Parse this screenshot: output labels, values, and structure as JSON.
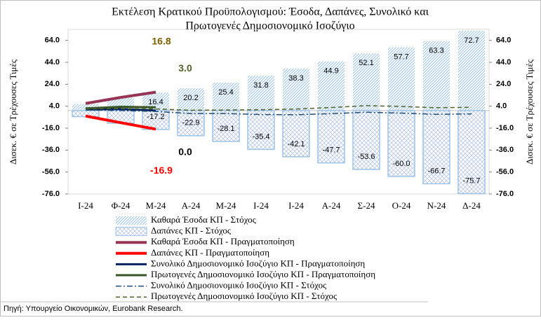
{
  "chart_data": {
    "type": "combo",
    "title": [
      "Εκτέλεση Κρατικού Προϋπολογισμού: Έσοδα, Δαπάνες, Συνολικό και",
      "Πρωτογενές Δημοσιονομικό Ισοζύγιο"
    ],
    "y_label": "Δισεκ. € σε Τρέχουσες Τιμές",
    "y2_label": "Δισεκ. € σε Τρέχουσες Τιμές",
    "source": "Πηγή: Υπουργείο Οικονομικών, Eurobank Research.",
    "categories": [
      "Ι-24",
      "Φ-24",
      "Μ-24",
      "Α-24",
      "Μ-24",
      "Ι-24",
      "Ι-24",
      "Α-24",
      "Σ-24",
      "Ο-24",
      "Ν-24",
      "Δ-24"
    ],
    "ylim": [
      -76,
      74
    ],
    "yticks": [
      {
        "value": 64,
        "label": "64.0"
      },
      {
        "value": 44,
        "label": "44.0"
      },
      {
        "value": 24,
        "label": "24.0"
      },
      {
        "value": 4,
        "label": "4.0"
      },
      {
        "value": -16,
        "label": "-16.0"
      },
      {
        "value": -36,
        "label": "-36.0"
      },
      {
        "value": -56,
        "label": "-56.0"
      },
      {
        "value": -76,
        "label": "-76.0"
      }
    ],
    "y2lim": [
      -76,
      74
    ],
    "y2ticks": [
      {
        "value": 64,
        "label": "64.0"
      },
      {
        "value": 44,
        "label": "44.0"
      },
      {
        "value": 24,
        "label": "24.0"
      },
      {
        "value": 4,
        "label": "4.0"
      },
      {
        "value": -16,
        "label": "-16.0"
      },
      {
        "value": -36,
        "label": "-36.0"
      },
      {
        "value": -56,
        "label": "-56.0"
      },
      {
        "value": -76,
        "label": "-76.0"
      }
    ],
    "legend": "bottom",
    "series": [
      {
        "name": "Καθαρά Έσοδα ΚΠ - Στόχος",
        "type": "bar",
        "pattern": "diagonal",
        "color": "#9dc3e6",
        "values": [
          6.0,
          11.5,
          16.4,
          20.2,
          25.4,
          31.8,
          38.3,
          44.9,
          52.1,
          57.7,
          63.3,
          72.7
        ],
        "value_labels": [
          null,
          null,
          "16.4",
          "20.2",
          "25.4",
          "31.8",
          "38.3",
          "44.9",
          "52.1",
          "57.7",
          "63.3",
          "72.7"
        ]
      },
      {
        "name": "Δαπάνες ΚΠ - Στόχος",
        "type": "bar",
        "pattern": "cross",
        "color": "#9dc3e6",
        "values": [
          -5.5,
          -11.5,
          -17.2,
          -22.9,
          -28.1,
          -35.4,
          -42.1,
          -47.7,
          -53.6,
          -60.0,
          -66.7,
          -75.7
        ],
        "value_labels": [
          null,
          null,
          "-17.2",
          "-22.9",
          "-28.1",
          "-35.4",
          "-42.1",
          "-47.7",
          "-53.6",
          "-60.0",
          "-66.7",
          "-75.7"
        ]
      },
      {
        "name": "Καθαρά Έσοδα ΚΠ - Πραγματοποίηση",
        "type": "line",
        "color": "#953553",
        "width": 4,
        "values": [
          6.5,
          12.0,
          16.8,
          null,
          null,
          null,
          null,
          null,
          null,
          null,
          null,
          null
        ],
        "value_labels": [
          null,
          null,
          "16.8",
          null,
          null,
          null,
          null,
          null,
          null,
          null,
          null,
          null
        ],
        "label_color": "#7f6000"
      },
      {
        "name": "Δαπάνες ΚΠ - Πραγματοποίηση",
        "type": "line",
        "color": "#ff0000",
        "width": 4,
        "values": [
          -5.0,
          -11.0,
          -16.9,
          null,
          null,
          null,
          null,
          null,
          null,
          null,
          null,
          null
        ],
        "value_labels": [
          null,
          null,
          "-16.9",
          null,
          null,
          null,
          null,
          null,
          null,
          null,
          null,
          null
        ],
        "label_color": "#ff0000"
      },
      {
        "name": "Συνολικό Δημοσιονομικό Ισοζύγιο ΚΠ - Πραγματοποίηση",
        "type": "line",
        "color": "#002060",
        "width": 3,
        "values": [
          1.0,
          1.5,
          0.0,
          null,
          null,
          null,
          null,
          null,
          null,
          null,
          null,
          null
        ],
        "value_labels": [
          null,
          null,
          "0.0",
          null,
          null,
          null,
          null,
          null,
          null,
          null,
          null,
          null
        ],
        "label_color": "#000000"
      },
      {
        "name": "Πρωτογενές Δημοσιονομικό Ισοζύγιο ΚΠ - Πραγματοποίηση",
        "type": "line",
        "color": "#375623",
        "width": 3,
        "values": [
          2.0,
          3.5,
          3.0,
          null,
          null,
          null,
          null,
          null,
          null,
          null,
          null,
          null
        ],
        "value_labels": [
          null,
          null,
          "3.0",
          null,
          null,
          null,
          null,
          null,
          null,
          null,
          null,
          null
        ],
        "label_color": "#4f6228"
      },
      {
        "name": "Συνολικό Δημοσιονομικό Ισοζύγιο ΚΠ - Στόχος",
        "type": "line",
        "dash": "dashdot",
        "color": "#1f4e79",
        "width": 1.5,
        "values": [
          0.5,
          0.0,
          -0.8,
          -2.7,
          -2.7,
          -3.6,
          -3.8,
          -2.8,
          -1.5,
          -2.3,
          -3.4,
          -3.0
        ]
      },
      {
        "name": "Πρωτογενές Δημοσιονομικό Ισοζύγιο ΚΠ - Στόχος",
        "type": "line",
        "dash": "dashed",
        "color": "#4f6228",
        "width": 1.5,
        "values": [
          1.5,
          1.8,
          1.5,
          0.3,
          0.5,
          0.8,
          1.4,
          2.8,
          4.5,
          3.8,
          2.6,
          3.0
        ]
      }
    ]
  }
}
